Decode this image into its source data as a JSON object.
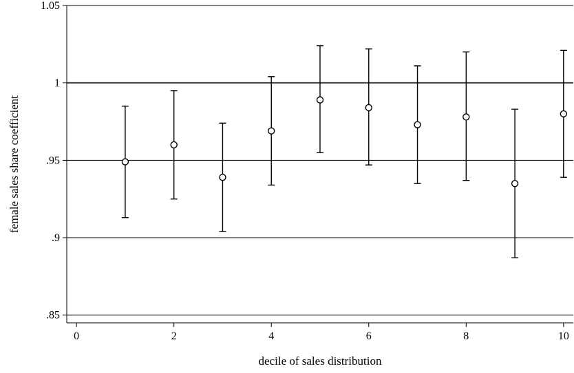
{
  "chart_data": {
    "type": "scatter",
    "title": "",
    "xlabel": "decile of sales distribution",
    "ylabel": "female sales share coefficient",
    "xlim": [
      -0.2,
      10.2
    ],
    "ylim": [
      0.845,
      1.05
    ],
    "x_ticks": [
      0,
      2,
      4,
      6,
      8,
      10
    ],
    "x_tick_labels": [
      "0",
      "2",
      "4",
      "6",
      "8",
      "10"
    ],
    "y_ticks": [
      0.85,
      0.9,
      0.95,
      1.0,
      1.05
    ],
    "y_tick_labels": [
      ".85",
      ".9",
      ".95",
      "1",
      "1.05"
    ],
    "grid": "horizontal",
    "reference_line": 1.0,
    "marker": "hollow-circle",
    "x": [
      1,
      2,
      3,
      4,
      5,
      6,
      7,
      8,
      9,
      10
    ],
    "values": [
      0.949,
      0.96,
      0.939,
      0.969,
      0.989,
      0.984,
      0.973,
      0.978,
      0.935,
      0.98
    ],
    "ci_lower": [
      0.913,
      0.925,
      0.904,
      0.934,
      0.955,
      0.947,
      0.935,
      0.937,
      0.887,
      0.939
    ],
    "ci_upper": [
      0.985,
      0.995,
      0.974,
      1.004,
      1.024,
      1.022,
      1.011,
      1.02,
      0.983,
      1.021
    ]
  }
}
